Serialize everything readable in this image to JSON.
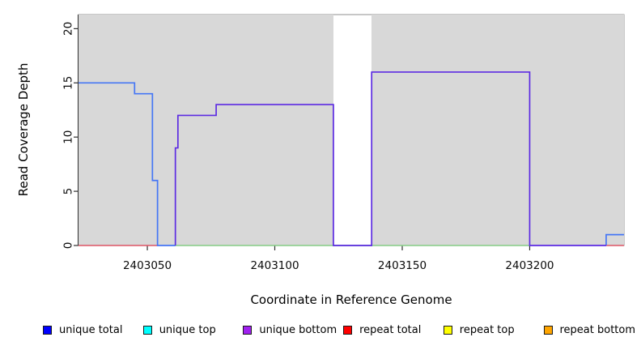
{
  "chart_data": {
    "type": "line",
    "subtype": "step-coverage",
    "title": "",
    "xlabel": "Coordinate in Reference Genome",
    "ylabel": "Read Coverage Depth",
    "xlim": [
      2403023,
      2403237
    ],
    "ylim": [
      0,
      21.3
    ],
    "x_ticks": [
      2403050,
      2403100,
      2403150,
      2403200
    ],
    "y_ticks": [
      0,
      5,
      10,
      15,
      20
    ],
    "grid": false,
    "plot_bg": "#ffffff",
    "region_color": "#d8d8d8",
    "frame_color": "#8f8f8f",
    "axis_color": "#303030",
    "background_regions": [
      [
        2403023,
        2403123
      ],
      [
        2403138,
        2403237
      ]
    ],
    "series": [
      {
        "name": "zero-baseline-green",
        "color": "#86cc86",
        "width": 1.4,
        "segments": [
          [
            [
              2403061,
              0
            ],
            [
              2403200,
              0
            ]
          ]
        ]
      },
      {
        "name": "repeat total",
        "color": "#dd5566",
        "width": 1.4,
        "segments": [
          [
            [
              2403023,
              0
            ],
            [
              2403054,
              0
            ]
          ],
          [
            [
              2403230,
              0
            ],
            [
              2403237,
              0
            ]
          ]
        ]
      },
      {
        "name": "unique total",
        "color": "#4576f5",
        "width": 1.7,
        "segments": [
          [
            [
              2403023,
              15
            ],
            [
              2403045,
              15
            ],
            [
              2403045,
              14
            ],
            [
              2403052,
              14
            ],
            [
              2403052,
              6
            ],
            [
              2403054,
              6
            ],
            [
              2403054,
              0
            ],
            [
              2403061,
              0
            ]
          ],
          [
            [
              2403230,
              0
            ],
            [
              2403230,
              1
            ],
            [
              2403237,
              1
            ]
          ]
        ]
      },
      {
        "name": "unique bottom",
        "color": "#5c2be2",
        "width": 1.7,
        "segments": [
          [
            [
              2403061,
              0
            ],
            [
              2403061,
              9
            ],
            [
              2403062,
              9
            ],
            [
              2403062,
              12
            ],
            [
              2403077,
              12
            ],
            [
              2403077,
              13
            ],
            [
              2403123,
              13
            ],
            [
              2403123,
              0
            ],
            [
              2403138,
              0
            ],
            [
              2403138,
              16
            ],
            [
              2403200,
              16
            ],
            [
              2403200,
              0
            ],
            [
              2403230,
              0
            ]
          ]
        ]
      }
    ],
    "legend": {
      "position": "bottom",
      "items": [
        {
          "label": "unique total",
          "color": "#0000ff"
        },
        {
          "label": "unique top",
          "color": "#00ffff"
        },
        {
          "label": "unique bottom",
          "color": "#a020f0"
        },
        {
          "label": "repeat total",
          "color": "#ff0000"
        },
        {
          "label": "repeat top",
          "color": "#ffff00"
        },
        {
          "label": "repeat bottom",
          "color": "#ffa500"
        }
      ]
    }
  }
}
